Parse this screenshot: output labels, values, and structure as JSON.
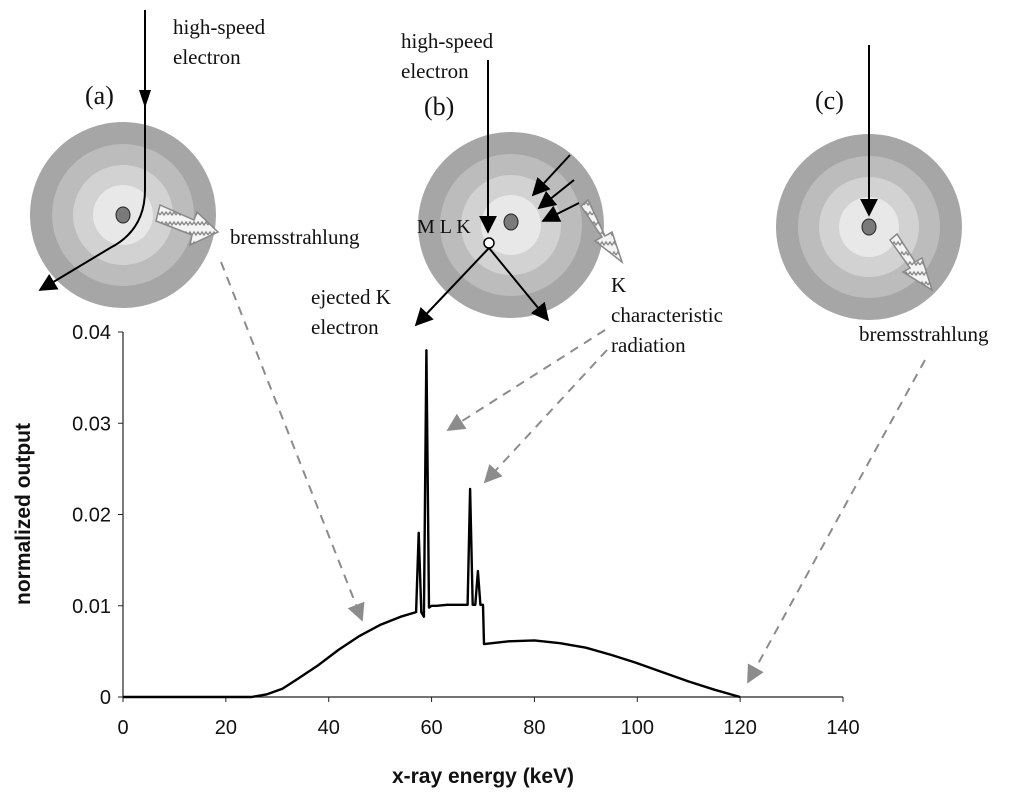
{
  "panels": {
    "a": {
      "label": "(a)",
      "electron_label_line1": "high-speed",
      "electron_label_line2": "electron",
      "radiation_label": "bremsstrahlung"
    },
    "b": {
      "label": "(b)",
      "electron_label_line1": "high-speed",
      "electron_label_line2": "electron",
      "shell_labels": "M L K",
      "ejected_line1": "ejected K",
      "ejected_line2": "electron",
      "char_line1": "K",
      "char_line2": "characteristic",
      "char_line3": "radiation"
    },
    "c": {
      "label": "(c)",
      "radiation_label": "bremsstrahlung"
    }
  },
  "colors": {
    "shell_outer": "#a6a6a6",
    "shell_2": "#bcbcbc",
    "shell_3": "#d2d2d2",
    "shell_inner": "#e8e8e8",
    "nucleus": "#7a7a7a",
    "curve": "#000000",
    "dashed_arrow": "#8c8c8c"
  },
  "chart_data": {
    "type": "line",
    "xlabel": "x-ray energy (keV)",
    "ylabel": "normalized output",
    "xlim": [
      0,
      140
    ],
    "ylim": [
      0,
      0.04
    ],
    "xticks": [
      "0",
      "20",
      "40",
      "60",
      "80",
      "100",
      "120",
      "140"
    ],
    "yticks": [
      "0",
      "0.01",
      "0.02",
      "0.03",
      "0.04"
    ],
    "grid": false,
    "series": [
      {
        "x": [
          0,
          20,
          25,
          28,
          31,
          34,
          38,
          42,
          46,
          50,
          54,
          57,
          57.5,
          58,
          58.5,
          59,
          59.5,
          60,
          60.5,
          61,
          63,
          66,
          67,
          67.5,
          68,
          68.5,
          69,
          69.5,
          70,
          70.2,
          75,
          80,
          85,
          90,
          95,
          100,
          105,
          110,
          115,
          120
        ],
        "y": [
          0,
          0,
          0,
          0.0003,
          0.0009,
          0.002,
          0.0035,
          0.0052,
          0.0067,
          0.0079,
          0.0088,
          0.0093,
          0.018,
          0.0093,
          0.0088,
          0.038,
          0.0098,
          0.01,
          0.01,
          0.01,
          0.0101,
          0.0101,
          0.0101,
          0.0228,
          0.0101,
          0.0101,
          0.0138,
          0.0101,
          0.0101,
          0.0058,
          0.0061,
          0.0062,
          0.0059,
          0.0054,
          0.0046,
          0.0037,
          0.0027,
          0.0017,
          0.0008,
          0.0
        ]
      }
    ]
  }
}
